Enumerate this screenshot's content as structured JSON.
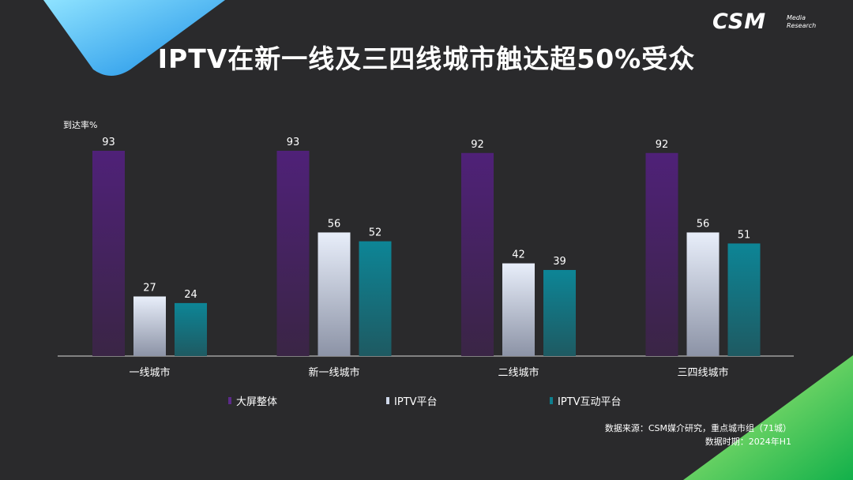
{
  "header": {
    "title": "IPTV在新一线及三四线城市触达超50%受众",
    "logo_text": "CSM",
    "logo_sub_line1": "Media",
    "logo_sub_line2": "Research"
  },
  "footer": {
    "source": "数据来源：CSM媒介研究，重点城市组（71城）",
    "period": "数据时期：2024年H1"
  },
  "colors": {
    "background": "#2a2a2c",
    "bigscreen": "#4a2270",
    "iptv": "#dfe6f2",
    "iptv_interactive": "#0e7f8e"
  },
  "chart_data": {
    "type": "bar",
    "ylabel": "到达率%",
    "categories": [
      "一线城市",
      "新一线城市",
      "二线城市",
      "三四线城市"
    ],
    "series": [
      {
        "name": "大屏整体",
        "values": [
          93,
          93,
          92,
          92
        ]
      },
      {
        "name": "IPTV平台",
        "values": [
          27,
          56,
          42,
          56
        ]
      },
      {
        "name": "IPTV互动平台",
        "values": [
          24,
          52,
          39,
          51
        ]
      }
    ],
    "ylim": [
      0,
      100
    ],
    "grid": false,
    "legend": "bottom"
  }
}
